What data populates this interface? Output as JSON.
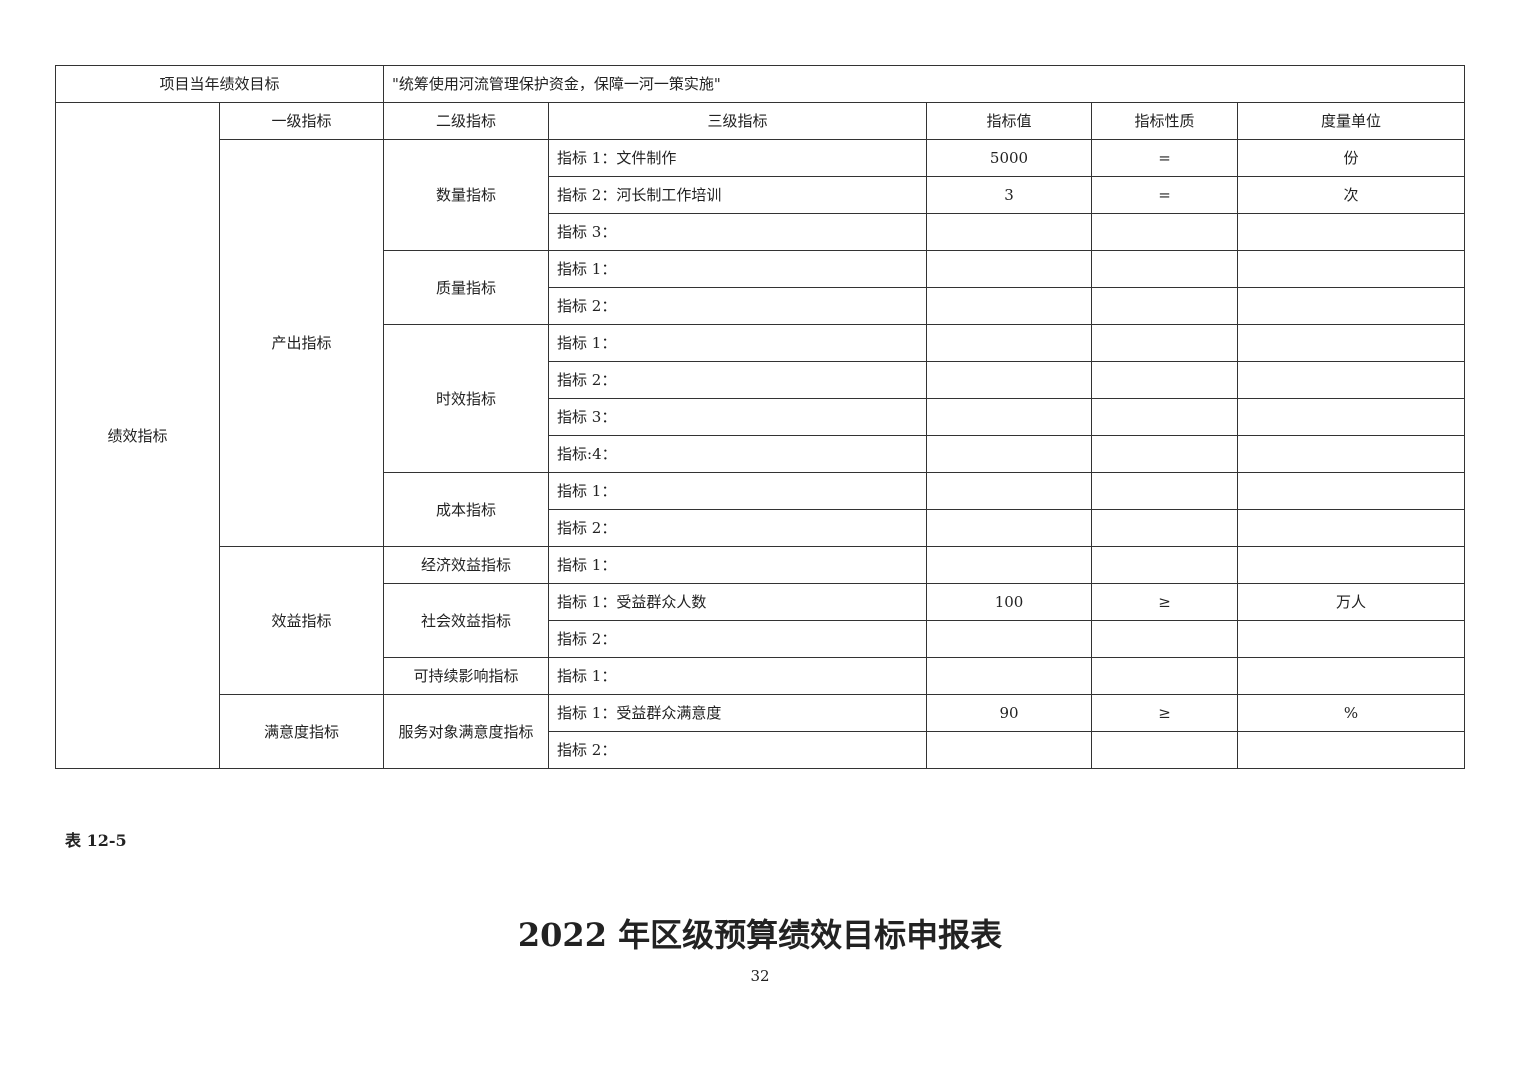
{
  "goal": {
    "label": "项目当年绩效目标",
    "value": "\"统筹使用河流管理保护资金，保障一河一策实施\""
  },
  "section_label": "绩效指标",
  "headers": [
    "一级指标",
    "二级指标",
    "三级指标",
    "指标值",
    "指标性质",
    "度量单位"
  ],
  "level1": [
    {
      "name": "产出指标",
      "level2": [
        {
          "name": "数量指标",
          "items": [
            {
              "name": "指标 1：文件制作",
              "value": "5000",
              "nature": "=",
              "unit": "份"
            },
            {
              "name": "指标 2：河长制工作培训",
              "value": "3",
              "nature": "=",
              "unit": "次"
            },
            {
              "name": "指标 3：",
              "value": "",
              "nature": "",
              "unit": ""
            }
          ]
        },
        {
          "name": "质量指标",
          "items": [
            {
              "name": "指标 1：",
              "value": "",
              "nature": "",
              "unit": ""
            },
            {
              "name": "指标 2：",
              "value": "",
              "nature": "",
              "unit": ""
            }
          ]
        },
        {
          "name": "时效指标",
          "items": [
            {
              "name": "指标 1：",
              "value": "",
              "nature": "",
              "unit": ""
            },
            {
              "name": "指标 2：",
              "value": "",
              "nature": "",
              "unit": ""
            },
            {
              "name": "指标 3：",
              "value": "",
              "nature": "",
              "unit": ""
            },
            {
              "name": "指标:4：",
              "value": "",
              "nature": "",
              "unit": ""
            }
          ]
        },
        {
          "name": "成本指标",
          "items": [
            {
              "name": "指标 1：",
              "value": "",
              "nature": "",
              "unit": ""
            },
            {
              "name": "指标 2：",
              "value": "",
              "nature": "",
              "unit": ""
            }
          ]
        }
      ]
    },
    {
      "name": "效益指标",
      "level2": [
        {
          "name": "经济效益指标",
          "items": [
            {
              "name": "指标 1：",
              "value": "",
              "nature": "",
              "unit": ""
            }
          ]
        },
        {
          "name": "社会效益指标",
          "items": [
            {
              "name": "指标 1：受益群众人数",
              "value": "100",
              "nature": "≥",
              "unit": "万人"
            },
            {
              "name": "指标 2：",
              "value": "",
              "nature": "",
              "unit": ""
            }
          ]
        },
        {
          "name": "可持续影响指标",
          "items": [
            {
              "name": "指标 1：",
              "value": "",
              "nature": "",
              "unit": ""
            }
          ]
        }
      ]
    },
    {
      "name": "满意度指标",
      "level2": [
        {
          "name": "服务对象满意度指标",
          "items": [
            {
              "name": "指标 1：受益群众满意度",
              "value": "90",
              "nature": "≥",
              "unit": "%"
            },
            {
              "name": "指标 2：",
              "value": "",
              "nature": "",
              "unit": ""
            }
          ]
        }
      ]
    }
  ],
  "table_label": "表 12-5",
  "doc_title": "2022 年区级预算绩效目标申报表",
  "page_number": "32"
}
